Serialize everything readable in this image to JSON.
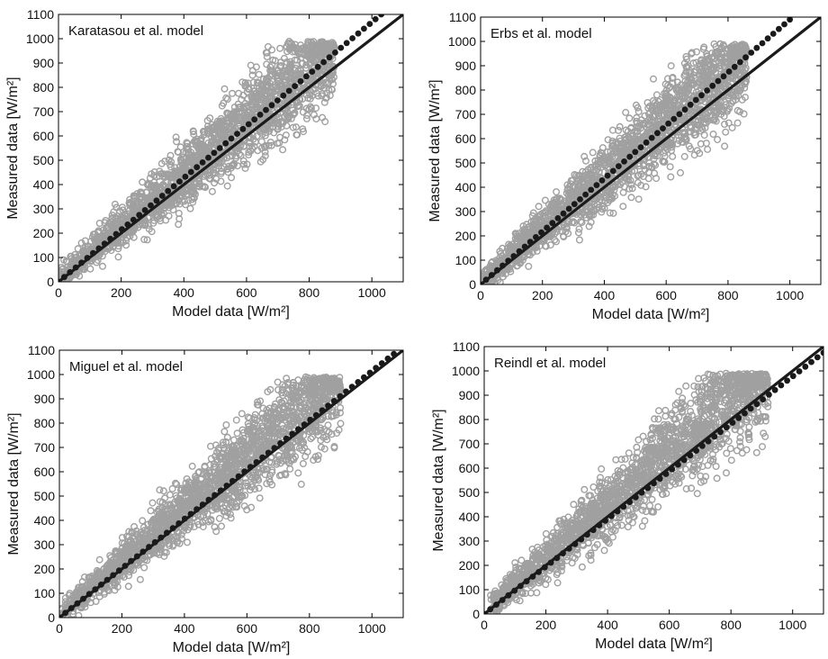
{
  "chart_data": [
    {
      "type": "scatter",
      "title": "Karatasou et al. model",
      "xlabel": "Model data [W/m²]",
      "ylabel": "Measured data [W/m²]",
      "xlim": [
        0,
        1100
      ],
      "ylim": [
        0,
        1100
      ],
      "xticks": [
        0,
        200,
        400,
        600,
        800,
        1000
      ],
      "yticks": [
        0,
        100,
        200,
        300,
        400,
        500,
        600,
        700,
        800,
        900,
        1000,
        1100
      ],
      "grid": false,
      "reference_line": {
        "style": "solid",
        "color": "#1a1a1a",
        "x": [
          0,
          1100
        ],
        "y": [
          0,
          1100
        ]
      },
      "fit_line": {
        "style": "dotted-markers",
        "color": "#1a1a1a",
        "x": [
          0,
          1030
        ],
        "y": [
          0,
          1100
        ]
      },
      "scatter": {
        "marker": "open-circle",
        "color": "#a0a0a0",
        "x_range": [
          0,
          880
        ],
        "y_range": [
          0,
          990
        ],
        "approx_points": 2000
      }
    },
    {
      "type": "scatter",
      "title": "Erbs et al. model",
      "xlabel": "Model data [W/m²]",
      "ylabel": "Measured data [W/m²]",
      "xlim": [
        0,
        1100
      ],
      "ylim": [
        0,
        1100
      ],
      "xticks": [
        0,
        200,
        400,
        600,
        800,
        1000
      ],
      "yticks": [
        0,
        100,
        200,
        300,
        400,
        500,
        600,
        700,
        800,
        900,
        1000,
        1100
      ],
      "grid": false,
      "reference_line": {
        "style": "solid",
        "color": "#1a1a1a",
        "x": [
          0,
          1100
        ],
        "y": [
          0,
          1100
        ]
      },
      "fit_line": {
        "style": "dotted-markers",
        "color": "#1a1a1a",
        "x": [
          0,
          1000
        ],
        "y": [
          0,
          1090
        ]
      },
      "scatter": {
        "marker": "open-circle",
        "color": "#a0a0a0",
        "x_range": [
          0,
          860
        ],
        "y_range": [
          0,
          990
        ],
        "approx_points": 2000
      }
    },
    {
      "type": "scatter",
      "title": "Miguel et al. model",
      "xlabel": "Model data [W/m²]",
      "ylabel": "Measured data [W/m²]",
      "xlim": [
        0,
        1100
      ],
      "ylim": [
        0,
        1100
      ],
      "xticks": [
        0,
        200,
        400,
        600,
        800,
        1000
      ],
      "yticks": [
        0,
        100,
        200,
        300,
        400,
        500,
        600,
        700,
        800,
        900,
        1000,
        1100
      ],
      "grid": false,
      "reference_line": {
        "style": "solid",
        "color": "#1a1a1a",
        "x": [
          0,
          1100
        ],
        "y": [
          0,
          1100
        ]
      },
      "fit_line": {
        "style": "dotted-markers",
        "color": "#1a1a1a",
        "x": [
          0,
          1070
        ],
        "y": [
          0,
          1085
        ]
      },
      "scatter": {
        "marker": "open-circle",
        "color": "#a0a0a0",
        "x_range": [
          0,
          900
        ],
        "y_range": [
          0,
          990
        ],
        "approx_points": 2000
      }
    },
    {
      "type": "scatter",
      "title": "Reindl et al. model",
      "xlabel": "Model data [W/m²]",
      "ylabel": "Measured data [W/m²]",
      "xlim": [
        0,
        1100
      ],
      "ylim": [
        0,
        1100
      ],
      "xticks": [
        0,
        200,
        400,
        600,
        800,
        1000
      ],
      "yticks": [
        0,
        100,
        200,
        300,
        400,
        500,
        600,
        700,
        800,
        900,
        1000,
        1100
      ],
      "grid": false,
      "reference_line": {
        "style": "solid",
        "color": "#1a1a1a",
        "x": [
          0,
          1100
        ],
        "y": [
          0,
          1100
        ]
      },
      "fit_line": {
        "style": "dotted-markers",
        "color": "#1a1a1a",
        "x": [
          0,
          1100
        ],
        "y": [
          0,
          1075
        ]
      },
      "scatter": {
        "marker": "open-circle",
        "color": "#a0a0a0",
        "x_range": [
          20,
          920
        ],
        "y_range": [
          0,
          990
        ],
        "approx_points": 2000
      }
    }
  ]
}
